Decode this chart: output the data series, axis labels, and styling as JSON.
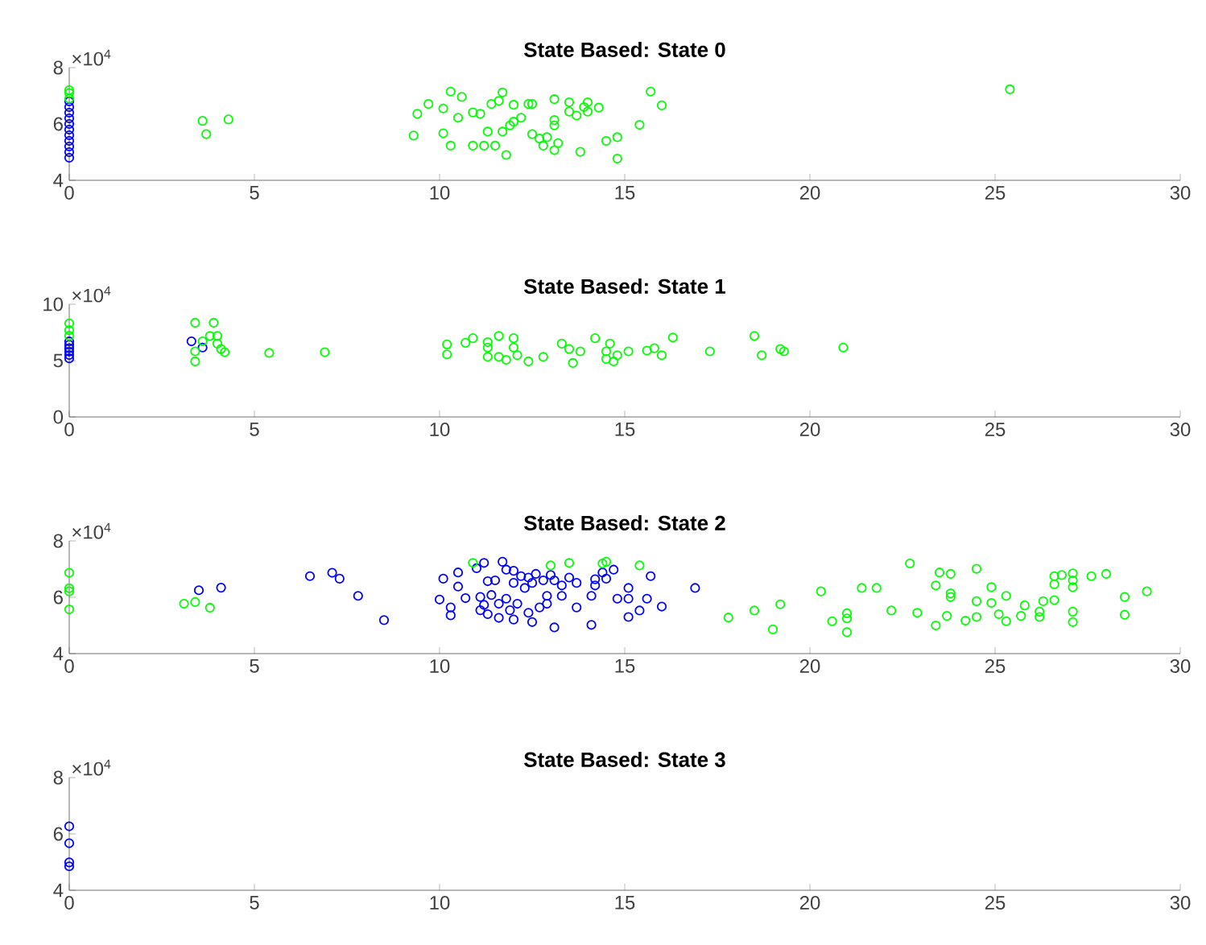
{
  "chart_data": [
    {
      "type": "scatter",
      "title": "State Based: State 0",
      "marker": "circle",
      "xlim": [
        0,
        30
      ],
      "xticks": [
        0,
        5,
        10,
        15,
        20,
        25,
        30
      ],
      "ylim": [
        4,
        8
      ],
      "yticks": [
        4,
        6,
        8
      ],
      "annotations": [
        "×10$^{4}$"
      ],
      "series": [
        {
          "color": "#0000ff",
          "x": [
            0,
            0,
            0,
            0,
            0,
            0,
            0,
            0,
            0,
            0,
            0
          ],
          "values": [
            4.8,
            5.0,
            5.2,
            5.4,
            5.6,
            5.8,
            6.0,
            6.2,
            6.4,
            6.6,
            6.8
          ]
        },
        {
          "color": "#00ff00",
          "x": [
            0,
            0,
            0,
            3.6,
            3.7,
            4.3,
            9.4,
            9.7,
            9.3,
            10.1,
            10.3,
            10.6,
            10.5,
            10.1,
            10.3,
            10.9,
            10.9,
            11.1,
            11.2,
            11.3,
            11.5,
            11.4,
            11.6,
            11.7,
            11.8,
            11.7,
            11.9,
            12.0,
            12.0,
            12.2,
            12.4,
            12.5,
            12.5,
            12.7,
            12.8,
            12.9,
            13.1,
            13.1,
            13.1,
            13.1,
            13.2,
            13.5,
            13.5,
            13.7,
            13.9,
            14.0,
            14.0,
            14.3,
            13.8,
            14.5,
            14.8,
            14.8,
            15.4,
            15.7,
            16.0,
            25.4
          ],
          "values": [
            6.9,
            7.1,
            7.2,
            6.11,
            5.64,
            6.16,
            6.36,
            6.71,
            5.59,
            6.55,
            7.15,
            6.96,
            6.22,
            5.67,
            5.23,
            6.41,
            5.23,
            6.36,
            5.23,
            5.73,
            5.23,
            6.71,
            6.82,
            7.12,
            4.9,
            5.73,
            5.95,
            6.68,
            6.08,
            6.22,
            6.71,
            6.71,
            5.64,
            5.48,
            5.23,
            5.53,
            6.88,
            6.14,
            5.95,
            5.07,
            5.32,
            6.77,
            6.44,
            6.3,
            6.6,
            6.44,
            6.77,
            6.58,
            5.01,
            5.4,
            5.53,
            4.77,
            5.97,
            7.15,
            6.66,
            7.23
          ]
        }
      ]
    },
    {
      "type": "scatter",
      "title": "State Based: State 1",
      "marker": "circle",
      "xlim": [
        0,
        30
      ],
      "xticks": [
        0,
        5,
        10,
        15,
        20,
        25,
        30
      ],
      "ylim": [
        0,
        10
      ],
      "yticks": [
        0,
        5,
        10
      ],
      "annotations": [
        "×10$^{4}$"
      ],
      "series": [
        {
          "color": "#0000ff",
          "x": [
            0,
            0,
            0,
            0,
            0,
            0,
            3.3,
            3.6
          ],
          "values": [
            5.2,
            5.5,
            5.8,
            6.1,
            6.4,
            6.7,
            6.71,
            6.16
          ]
        },
        {
          "color": "#00ff00",
          "x": [
            0,
            0,
            0,
            3.4,
            3.9,
            3.4,
            3.4,
            3.6,
            3.8,
            4.0,
            4.0,
            4.1,
            4.2,
            5.4,
            6.9,
            10.2,
            10.2,
            10.7,
            10.9,
            11.3,
            11.3,
            11.3,
            11.6,
            11.6,
            11.8,
            12.0,
            12.1,
            12.0,
            12.4,
            12.8,
            13.3,
            13.5,
            13.6,
            13.8,
            14.2,
            14.6,
            14.5,
            14.5,
            14.7,
            14.8,
            15.1,
            15.6,
            15.8,
            16.0,
            16.3,
            17.3,
            18.5,
            18.7,
            19.2,
            19.3,
            20.9
          ],
          "values": [
            8.3,
            7.7,
            7.2,
            8.36,
            8.36,
            5.82,
            4.93,
            6.71,
            7.19,
            7.19,
            6.51,
            6.03,
            5.75,
            5.68,
            5.75,
            6.44,
            5.55,
            6.58,
            6.99,
            6.64,
            6.16,
            5.34,
            7.19,
            5.34,
            5.07,
            6.99,
            5.48,
            6.16,
            4.93,
            5.34,
            6.51,
            6.03,
            4.79,
            5.82,
            6.99,
            6.51,
            5.82,
            5.14,
            4.93,
            5.48,
            5.82,
            5.89,
            6.1,
            5.48,
            7.05,
            5.82,
            7.19,
            5.48,
            6.03,
            5.82,
            6.16
          ]
        }
      ]
    },
    {
      "type": "scatter",
      "title": "State Based: State 2",
      "marker": "circle",
      "xlim": [
        0,
        30
      ],
      "xticks": [
        0,
        5,
        10,
        15,
        20,
        25,
        30
      ],
      "ylim": [
        4,
        8
      ],
      "yticks": [
        4,
        6,
        8
      ],
      "annotations": [
        "×10$^{4}$"
      ],
      "series": [
        {
          "color": "#0000ff",
          "x": [
            3.5,
            4.1,
            6.5,
            7.1,
            7.3,
            7.8,
            8.5,
            10.0,
            10.1,
            10.3,
            10.3,
            10.5,
            10.5,
            10.7,
            11.0,
            11.1,
            11.1,
            11.2,
            11.2,
            11.3,
            11.3,
            11.4,
            11.5,
            11.6,
            11.6,
            11.7,
            11.8,
            11.8,
            11.9,
            12.0,
            12.0,
            12.0,
            12.1,
            12.2,
            12.3,
            12.4,
            12.4,
            12.5,
            12.5,
            12.6,
            12.7,
            12.8,
            12.9,
            12.9,
            13.0,
            13.1,
            13.1,
            13.3,
            13.3,
            13.5,
            13.7,
            13.7,
            14.1,
            14.1,
            14.2,
            14.2,
            14.4,
            14.5,
            14.7,
            14.8,
            15.1,
            15.1,
            15.1,
            15.4,
            15.6,
            15.7,
            16.0,
            16.9
          ],
          "values": [
            6.25,
            6.34,
            6.75,
            6.87,
            6.66,
            6.05,
            5.19,
            5.92,
            6.66,
            5.64,
            5.36,
            6.38,
            6.88,
            5.97,
            7.03,
            6.01,
            5.54,
            7.22,
            5.73,
            6.57,
            5.4,
            6.08,
            6.6,
            5.77,
            5.27,
            7.26,
            6.98,
            5.95,
            5.54,
            6.94,
            6.51,
            5.21,
            5.77,
            6.75,
            6.33,
            6.7,
            5.45,
            5.12,
            6.51,
            6.83,
            5.64,
            6.6,
            6.05,
            5.77,
            6.79,
            4.93,
            6.6,
            6.05,
            6.42,
            6.7,
            6.51,
            5.64,
            6.05,
            5.02,
            6.42,
            6.64,
            6.88,
            6.66,
            6.98,
            5.95,
            6.33,
            5.3,
            5.95,
            5.53,
            5.95,
            6.75,
            5.67,
            6.33
          ]
        },
        {
          "color": "#00ff00",
          "x": [
            0,
            0,
            0,
            0,
            3.1,
            3.4,
            3.8,
            10.9,
            13.0,
            13.5,
            14.4,
            14.5,
            15.4,
            17.8,
            18.5,
            19.0,
            19.2,
            20.3,
            20.6,
            21.0,
            21.0,
            21.0,
            21.4,
            21.8,
            22.2,
            22.7,
            22.9,
            23.4,
            23.5,
            23.8,
            23.8,
            23.8,
            23.7,
            23.4,
            24.2,
            24.5,
            24.5,
            24.5,
            24.9,
            24.9,
            25.1,
            25.3,
            25.3,
            25.7,
            25.8,
            26.2,
            26.2,
            26.3,
            26.6,
            26.6,
            26.6,
            26.8,
            27.1,
            27.1,
            27.1,
            27.1,
            27.1,
            27.6,
            28.0,
            28.5,
            28.5,
            29.1
          ],
          "values": [
            6.87,
            6.32,
            6.21,
            5.57,
            5.77,
            5.83,
            5.63,
            7.22,
            7.13,
            7.22,
            7.2,
            7.26,
            7.13,
            5.28,
            5.53,
            4.86,
            5.75,
            6.21,
            5.15,
            5.43,
            5.25,
            4.76,
            6.33,
            6.33,
            5.53,
            7.2,
            5.45,
            6.42,
            6.88,
            6.83,
            6.14,
            6.01,
            5.34,
            5.0,
            5.17,
            7.01,
            5.86,
            5.3,
            6.36,
            5.8,
            5.4,
            6.05,
            5.15,
            5.34,
            5.71,
            5.49,
            5.3,
            5.86,
            5.9,
            6.75,
            6.46,
            6.79,
            6.85,
            6.6,
            6.36,
            5.49,
            5.12,
            6.75,
            6.83,
            6.01,
            5.38,
            6.21
          ]
        }
      ]
    },
    {
      "type": "scatter",
      "title": "State Based: State 3",
      "marker": "circle",
      "xlim": [
        0,
        30
      ],
      "xticks": [
        0,
        5,
        10,
        15,
        20,
        25,
        30
      ],
      "ylim": [
        4,
        8
      ],
      "yticks": [
        4,
        6,
        8
      ],
      "annotations": [
        "×10$^{4}$"
      ],
      "series": [
        {
          "color": "#0000ff",
          "x": [
            0,
            0,
            0,
            0
          ],
          "values": [
            6.27,
            5.67,
            4.99,
            4.85
          ]
        }
      ]
    }
  ]
}
